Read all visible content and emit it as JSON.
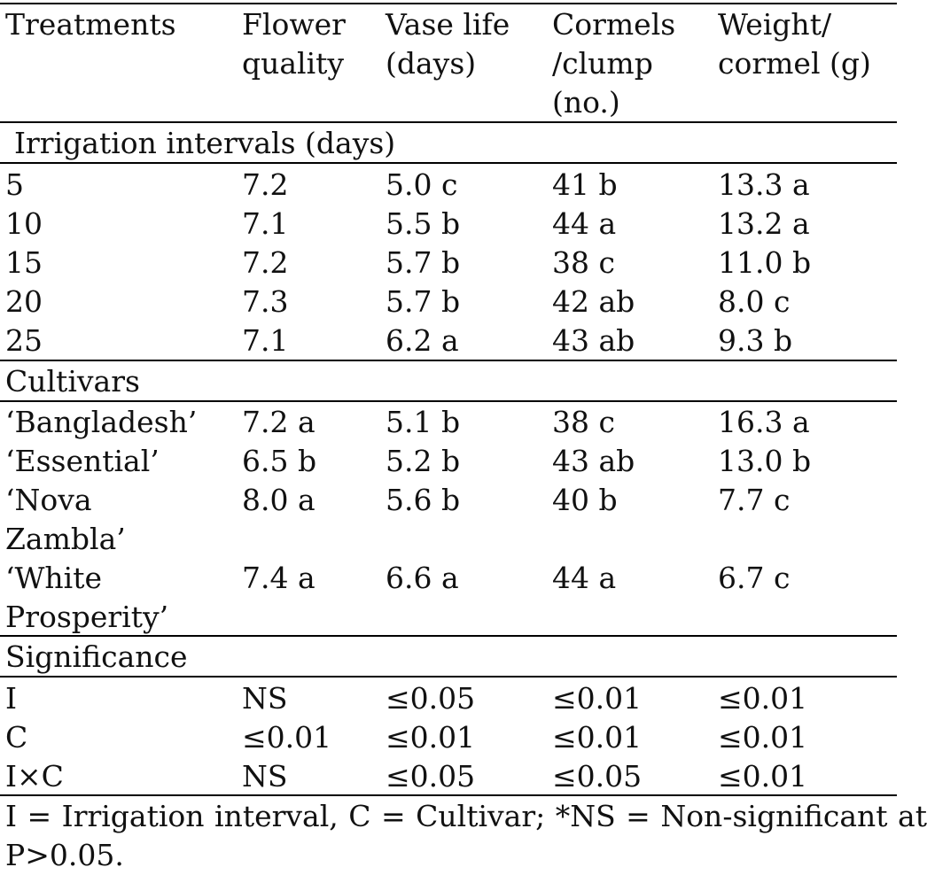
{
  "headers": {
    "treatments": "Treatments",
    "flower_quality": "Flower quality",
    "vase_life": "Vase life (days)",
    "cormels": "Cormels /clump (no.)",
    "weight": "Weight/ cormel (g)"
  },
  "sections": {
    "irrigation": "Irrigation intervals (days)",
    "cultivars": "Cultivars",
    "significance": "Significance"
  },
  "irrigation_rows": [
    {
      "treatment": "5",
      "flower_quality": "7.2",
      "vase_life": "5.0 c",
      "cormels": "41 b",
      "weight": "13.3 a"
    },
    {
      "treatment": "10",
      "flower_quality": "7.1",
      "vase_life": "5.5 b",
      "cormels": "44 a",
      "weight": "13.2 a"
    },
    {
      "treatment": "15",
      "flower_quality": "7.2",
      "vase_life": "5.7 b",
      "cormels": "38 c",
      "weight": "11.0 b"
    },
    {
      "treatment": "20",
      "flower_quality": "7.3",
      "vase_life": "5.7 b",
      "cormels": "42 ab",
      "weight": "8.0 c"
    },
    {
      "treatment": "25",
      "flower_quality": "7.1",
      "vase_life": "6.2 a",
      "cormels": "43 ab",
      "weight": "9.3 b"
    }
  ],
  "cultivar_rows": [
    {
      "treatment": "‘Bangladesh’",
      "flower_quality": "7.2 a",
      "vase_life": "5.1 b",
      "cormels": "38 c",
      "weight": "16.3 a"
    },
    {
      "treatment": "‘Essential’",
      "flower_quality": "6.5 b",
      "vase_life": "5.2 b",
      "cormels": "43 ab",
      "weight": "13.0 b"
    },
    {
      "treatment": "‘Nova Zambla’",
      "flower_quality": "8.0 a",
      "vase_life": "5.6 b",
      "cormels": "40 b",
      "weight": "7.7 c"
    },
    {
      "treatment": "‘White Prosperity’",
      "flower_quality": "7.4 a",
      "vase_life": "6.6 a",
      "cormels": "44 a",
      "weight": "6.7 c"
    }
  ],
  "significance_rows": [
    {
      "treatment": "I",
      "flower_quality": "NS",
      "vase_life": "≤0.05",
      "cormels": "≤0.01",
      "weight": "≤0.01"
    },
    {
      "treatment": "C",
      "flower_quality": "≤0.01",
      "vase_life": "≤0.01",
      "cormels": "≤0.01",
      "weight": "≤0.01"
    },
    {
      "treatment": "I×C",
      "flower_quality": "NS",
      "vase_life": "≤0.05",
      "cormels": "≤0.05",
      "weight": "≤0.01"
    }
  ],
  "footnote": "I = Irrigation interval, C = Cultivar; *NS = Non-significant at P>0.05."
}
